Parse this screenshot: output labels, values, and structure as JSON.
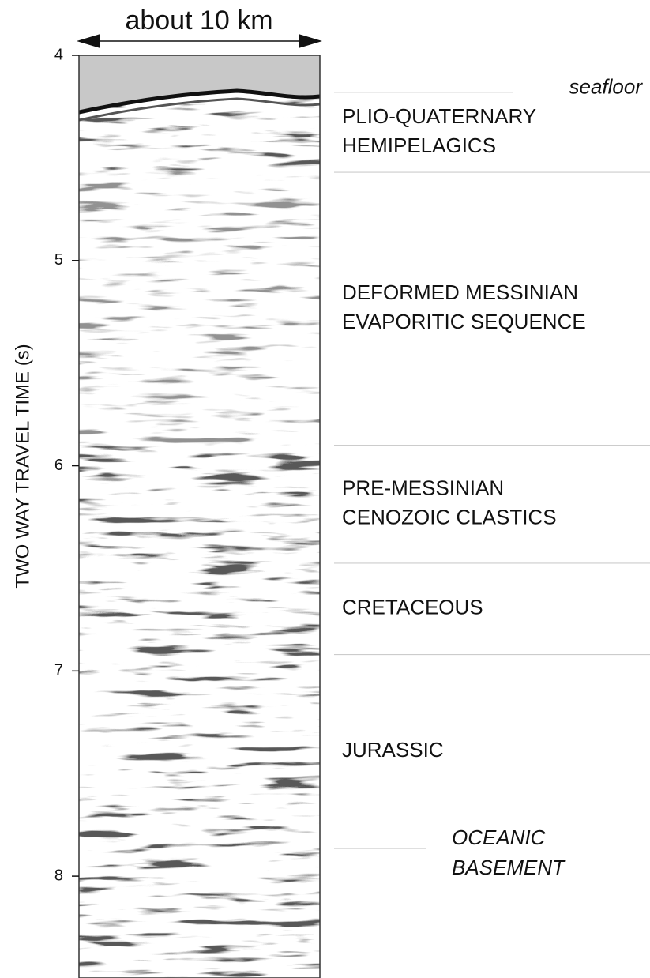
{
  "figure": {
    "scale_label": "about 10 km",
    "y_label": "TWO WAY TRAVEL TIME (s)",
    "ylim": [
      4,
      8.5
    ],
    "yticks": [
      4,
      5,
      6,
      7,
      8
    ],
    "horizons": [
      {
        "label": [
          "seafloor"
        ],
        "time": 4.18
      },
      {
        "time": 4.57
      },
      {
        "time": 5.9
      },
      {
        "time": 6.475
      },
      {
        "time": 6.92
      },
      {
        "label": [
          "OCEANIC",
          "BASEMENT"
        ],
        "time": 7.865
      }
    ],
    "units": [
      {
        "label": [
          "PLIO-QUATERNARY",
          "HEMIPELAGICS"
        ]
      },
      {
        "label": [
          "DEFORMED MESSINIAN",
          "EVAPORITIC SEQUENCE"
        ]
      },
      {
        "label": [
          "PRE-MESSINIAN",
          "CENOZOIC CLASTICS"
        ]
      },
      {
        "label": [
          "CRETACEOUS"
        ]
      },
      {
        "label": [
          "JURASSIC"
        ]
      }
    ]
  }
}
